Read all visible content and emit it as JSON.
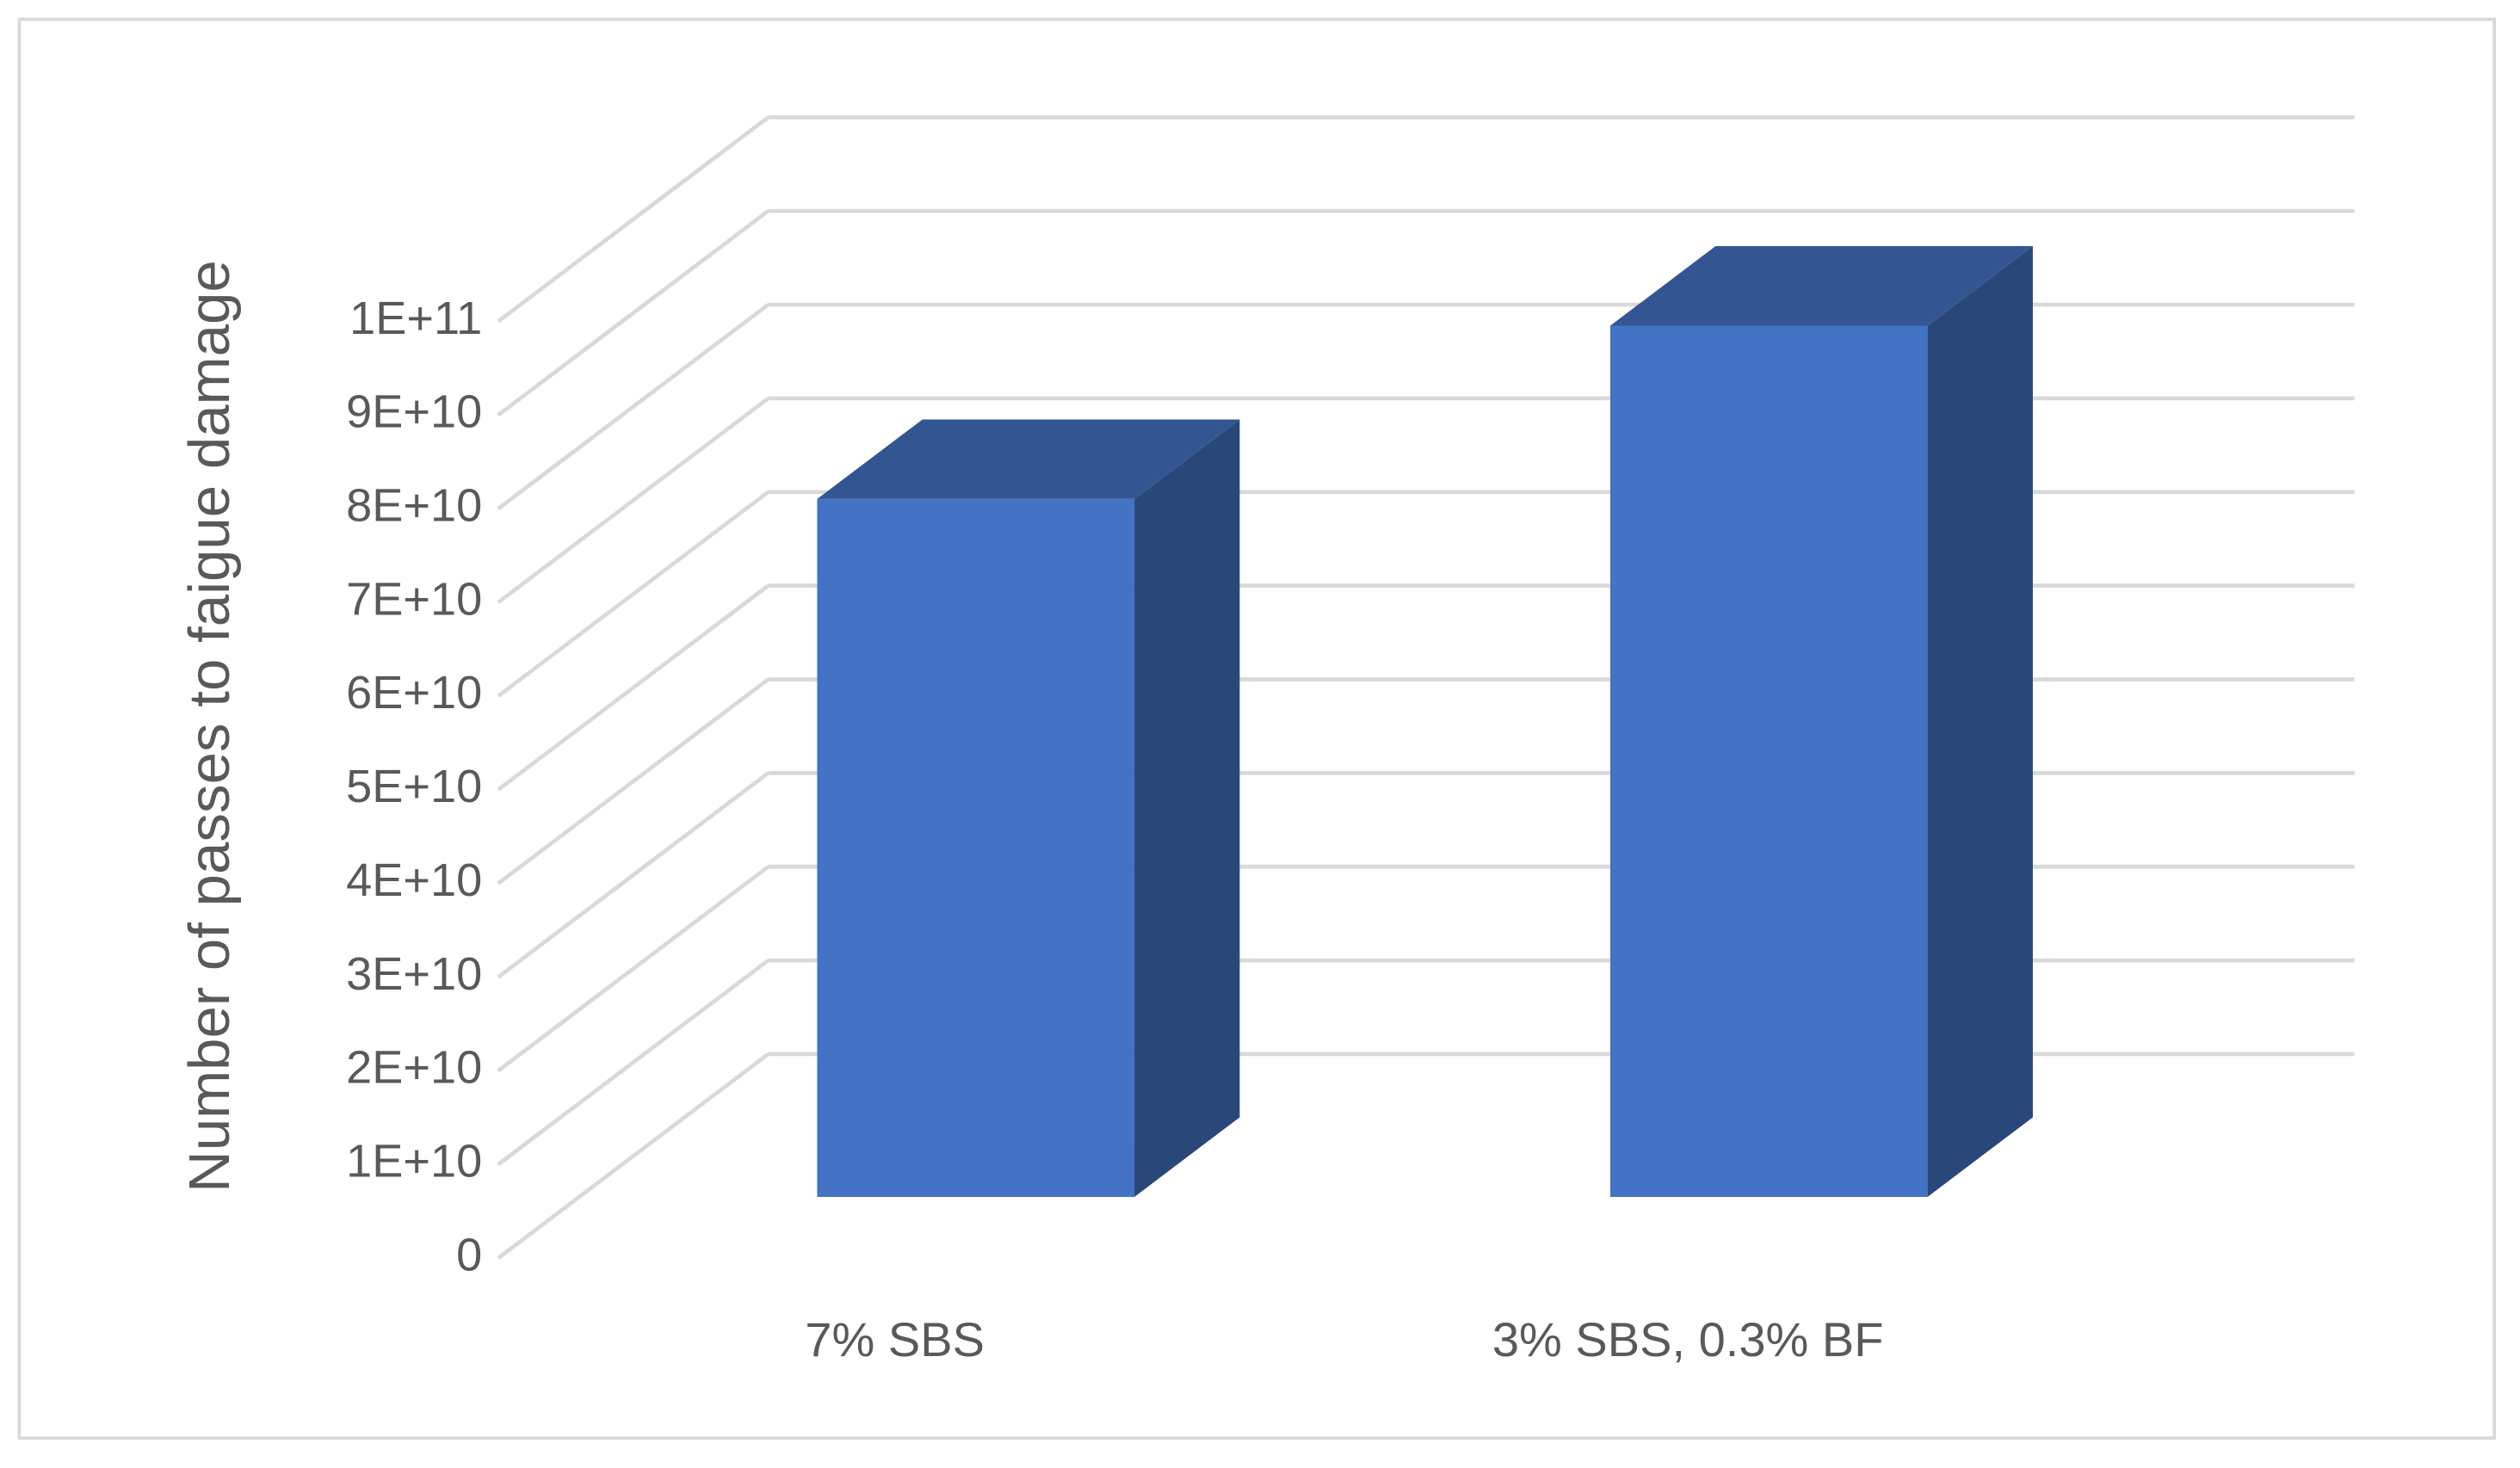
{
  "chart_data": {
    "type": "bar3d",
    "y_label": "Number of passes to faigue damage",
    "categories": [
      "7% SBS",
      "3% SBS, 0.3% BF"
    ],
    "values": [
      74500000000,
      93000000000
    ],
    "color": "#4472c4",
    "ylim": [
      0,
      100000000000
    ],
    "yticks": [
      0,
      {
        "value": 10000000000,
        "label": "1E+10"
      },
      {
        "value": 20000000000,
        "label": "2E+10"
      },
      {
        "value": 30000000000,
        "label": "3E+10"
      },
      {
        "value": 40000000000,
        "label": "4E+10"
      },
      {
        "value": 50000000000,
        "label": "5E+10"
      },
      {
        "value": 60000000000,
        "label": "6E+10"
      },
      {
        "value": 70000000000,
        "label": "7E+10"
      },
      {
        "value": 80000000000,
        "label": "8E+10"
      },
      {
        "value": 90000000000,
        "label": "9E+10"
      },
      {
        "value": 100000000000,
        "label": "1E+11"
      }
    ],
    "grid": true
  }
}
